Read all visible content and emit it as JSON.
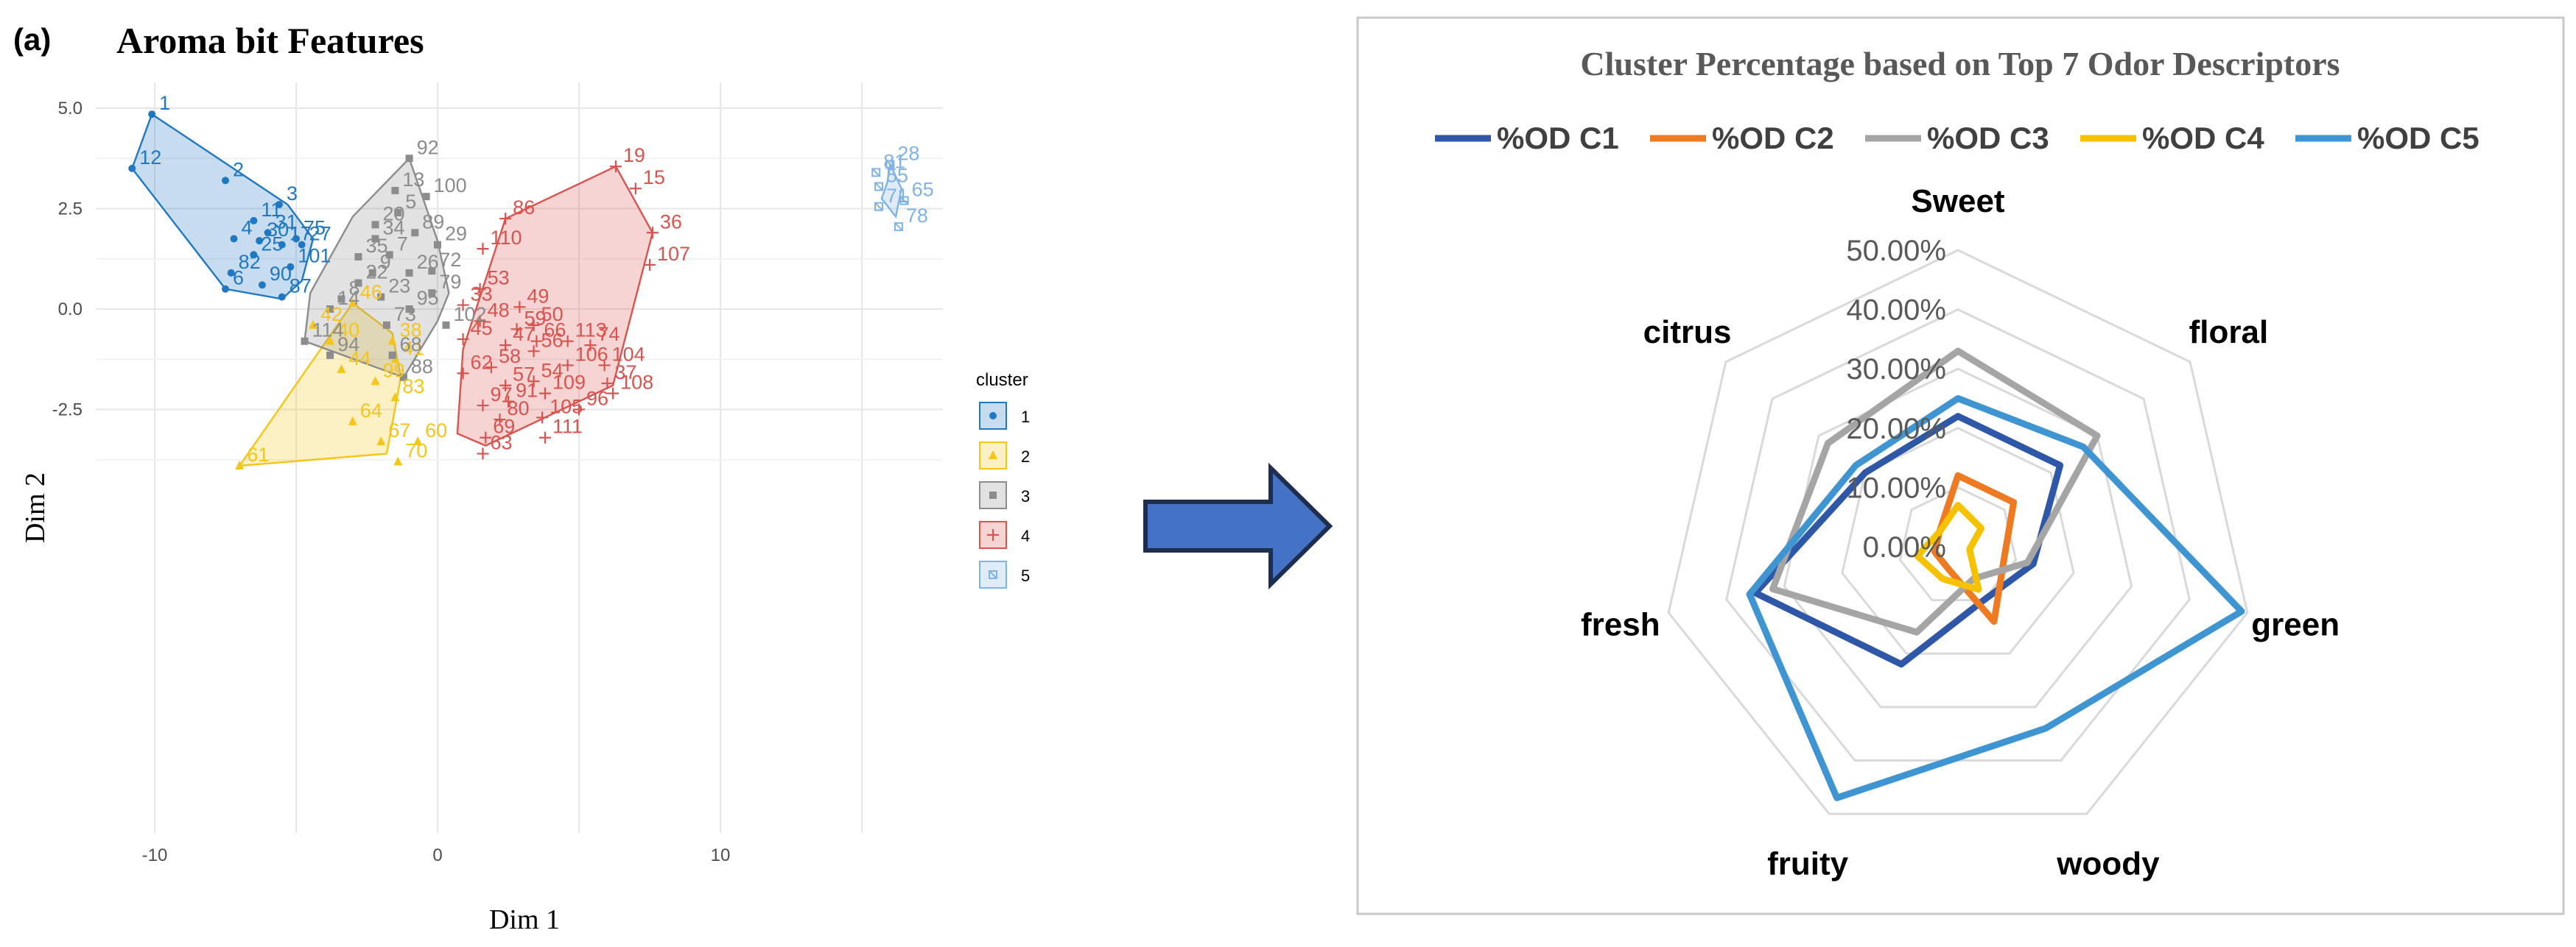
{
  "panel_label": "(a)",
  "colors": {
    "cluster1": "#1f78c1",
    "cluster2": "#f5c518",
    "cluster3": "#8c8c8c",
    "cluster4": "#d9534f",
    "cluster5": "#7fb2e5",
    "od_c1": "#2f57a8",
    "od_c2": "#ee7a22",
    "od_c3": "#a5a5a5",
    "od_c4": "#f6c200",
    "od_c5": "#3e95d1",
    "arrow_fill": "#4472c4",
    "arrow_stroke": "#1f2d4e"
  },
  "chart_data": [
    {
      "type": "scatter",
      "title": "Aroma bit Features",
      "xlabel": "Dim 1",
      "ylabel": "Dim 2",
      "xlim": [
        -10.5,
        17.5
      ],
      "ylim": [
        -4.6,
        5.4
      ],
      "xticks": [
        -10,
        0,
        10
      ],
      "yticks": [
        5.0,
        2.5,
        0.0,
        -2.5
      ],
      "xtick_labels": [
        "-10",
        "0",
        "10"
      ],
      "ytick_labels": [
        "5.0",
        "2.5",
        "0.0",
        "-2.5"
      ],
      "grid": true,
      "legend_title": "cluster",
      "legend_position": "right",
      "series": [
        {
          "name": "1",
          "hull": [
            [
              -10.1,
              4.85
            ],
            [
              -5.3,
              2.6
            ],
            [
              -4.4,
              1.75
            ],
            [
              -4.8,
              0.7
            ],
            [
              -5.5,
              0.25
            ],
            [
              -7.5,
              0.5
            ],
            [
              -10.8,
              3.5
            ]
          ],
          "points": [
            {
              "x": -10.1,
              "y": 4.85,
              "label": "1"
            },
            {
              "x": -10.8,
              "y": 3.5,
              "label": "12"
            },
            {
              "x": -7.5,
              "y": 3.2,
              "label": "2"
            },
            {
              "x": -5.6,
              "y": 2.6,
              "label": "3"
            },
            {
              "x": -6.5,
              "y": 2.2,
              "label": "11"
            },
            {
              "x": -6.0,
              "y": 1.9,
              "label": "31"
            },
            {
              "x": -5.0,
              "y": 1.75,
              "label": "75"
            },
            {
              "x": -7.2,
              "y": 1.75,
              "label": "4"
            },
            {
              "x": -6.3,
              "y": 1.7,
              "label": "30"
            },
            {
              "x": -5.5,
              "y": 1.6,
              "label": "17"
            },
            {
              "x": -4.8,
              "y": 1.6,
              "label": "27"
            },
            {
              "x": -6.5,
              "y": 1.35,
              "label": "25"
            },
            {
              "x": -5.2,
              "y": 1.05,
              "label": "101"
            },
            {
              "x": -7.3,
              "y": 0.9,
              "label": "82"
            },
            {
              "x": -6.2,
              "y": 0.6,
              "label": "90"
            },
            {
              "x": -7.5,
              "y": 0.5,
              "label": "6"
            },
            {
              "x": -5.5,
              "y": 0.3,
              "label": "87"
            }
          ]
        },
        {
          "name": "2",
          "hull": [
            [
              -3.0,
              0.15
            ],
            [
              -1.6,
              -0.6
            ],
            [
              -1.3,
              -1.7
            ],
            [
              -1.8,
              -3.6
            ],
            [
              -7.0,
              -3.9
            ]
          ],
          "points": [
            {
              "x": -3.0,
              "y": 0.15,
              "label": "46"
            },
            {
              "x": -4.4,
              "y": -0.4,
              "label": "42"
            },
            {
              "x": -3.8,
              "y": -0.8,
              "label": "40"
            },
            {
              "x": -1.6,
              "y": -0.8,
              "label": "38"
            },
            {
              "x": -1.5,
              "y": -1.25,
              "label": "41"
            },
            {
              "x": -3.4,
              "y": -1.5,
              "label": "44"
            },
            {
              "x": -2.2,
              "y": -1.8,
              "label": "99"
            },
            {
              "x": -1.5,
              "y": -2.2,
              "label": "83"
            },
            {
              "x": -3.0,
              "y": -2.8,
              "label": "64"
            },
            {
              "x": -2.0,
              "y": -3.3,
              "label": "67"
            },
            {
              "x": -0.7,
              "y": -3.3,
              "label": "60"
            },
            {
              "x": -7.0,
              "y": -3.9,
              "label": "61"
            },
            {
              "x": -1.4,
              "y": -3.8,
              "label": "70"
            }
          ]
        },
        {
          "name": "3",
          "hull": [
            [
              -1.0,
              3.75
            ],
            [
              0.0,
              1.7
            ],
            [
              0.4,
              0.4
            ],
            [
              0.0,
              -0.3
            ],
            [
              -1.2,
              -1.7
            ],
            [
              -4.7,
              -0.8
            ],
            [
              -4.5,
              0.4
            ],
            [
              -3.0,
              2.3
            ]
          ],
          "points": [
            {
              "x": -1.0,
              "y": 3.75,
              "label": "92"
            },
            {
              "x": -1.5,
              "y": 2.95,
              "label": "13"
            },
            {
              "x": -0.4,
              "y": 2.8,
              "label": "100"
            },
            {
              "x": -1.4,
              "y": 2.4,
              "label": "5"
            },
            {
              "x": -2.2,
              "y": 2.1,
              "label": "20"
            },
            {
              "x": -0.8,
              "y": 1.9,
              "label": "89"
            },
            {
              "x": -2.2,
              "y": 1.75,
              "label": "34"
            },
            {
              "x": 0.0,
              "y": 1.6,
              "label": "29"
            },
            {
              "x": -2.8,
              "y": 1.3,
              "label": "35"
            },
            {
              "x": -1.7,
              "y": 1.35,
              "label": "7"
            },
            {
              "x": -2.3,
              "y": 0.9,
              "label": "9"
            },
            {
              "x": -1.0,
              "y": 0.9,
              "label": "26"
            },
            {
              "x": -0.2,
              "y": 0.95,
              "label": "72"
            },
            {
              "x": -2.8,
              "y": 0.65,
              "label": "22"
            },
            {
              "x": -0.2,
              "y": 0.4,
              "label": "79"
            },
            {
              "x": -3.4,
              "y": 0.25,
              "label": "8"
            },
            {
              "x": -2.0,
              "y": 0.3,
              "label": "23"
            },
            {
              "x": -3.8,
              "y": 0.0,
              "label": "14"
            },
            {
              "x": -1.0,
              "y": 0.0,
              "label": "95"
            },
            {
              "x": 0.3,
              "y": -0.4,
              "label": "102"
            },
            {
              "x": -1.8,
              "y": -0.4,
              "label": "73"
            },
            {
              "x": -4.7,
              "y": -0.8,
              "label": "114"
            },
            {
              "x": -3.8,
              "y": -1.15,
              "label": "94"
            },
            {
              "x": -1.6,
              "y": -1.15,
              "label": "68"
            },
            {
              "x": -1.2,
              "y": -1.7,
              "label": "88"
            }
          ]
        },
        {
          "name": "4",
          "hull": [
            [
              6.3,
              3.55
            ],
            [
              7.6,
              1.9
            ],
            [
              6.2,
              -1.9
            ],
            [
              1.7,
              -3.4
            ],
            [
              0.7,
              -3.1
            ],
            [
              0.9,
              -1.0
            ],
            [
              2.4,
              2.25
            ]
          ],
          "points": [
            {
              "x": 6.3,
              "y": 3.55,
              "label": "19"
            },
            {
              "x": 7.0,
              "y": 3.0,
              "label": "15"
            },
            {
              "x": 2.4,
              "y": 2.25,
              "label": "86"
            },
            {
              "x": 7.6,
              "y": 1.9,
              "label": "36"
            },
            {
              "x": 1.6,
              "y": 1.5,
              "label": "110"
            },
            {
              "x": 7.5,
              "y": 1.1,
              "label": "107"
            },
            {
              "x": 1.5,
              "y": 0.5,
              "label": "53"
            },
            {
              "x": 2.9,
              "y": 0.05,
              "label": "49"
            },
            {
              "x": 0.9,
              "y": 0.1,
              "label": "33"
            },
            {
              "x": 1.5,
              "y": -0.3,
              "label": "48"
            },
            {
              "x": 3.4,
              "y": -0.4,
              "label": "50"
            },
            {
              "x": 2.8,
              "y": -0.5,
              "label": "59"
            },
            {
              "x": 3.5,
              "y": -0.8,
              "label": "66"
            },
            {
              "x": 0.9,
              "y": -0.75,
              "label": "45"
            },
            {
              "x": 4.6,
              "y": -0.8,
              "label": "113"
            },
            {
              "x": 5.4,
              "y": -0.9,
              "label": "74"
            },
            {
              "x": 2.4,
              "y": -0.9,
              "label": "47"
            },
            {
              "x": 3.4,
              "y": -1.05,
              "label": "56"
            },
            {
              "x": 1.9,
              "y": -1.45,
              "label": "58"
            },
            {
              "x": 4.6,
              "y": -1.4,
              "label": "106"
            },
            {
              "x": 5.9,
              "y": -1.4,
              "label": "104"
            },
            {
              "x": 0.9,
              "y": -1.6,
              "label": "62"
            },
            {
              "x": 2.4,
              "y": -1.9,
              "label": "57"
            },
            {
              "x": 3.4,
              "y": -1.8,
              "label": "54"
            },
            {
              "x": 6.0,
              "y": -1.85,
              "label": "37"
            },
            {
              "x": 3.8,
              "y": -2.1,
              "label": "109"
            },
            {
              "x": 6.2,
              "y": -2.1,
              "label": "108"
            },
            {
              "x": 2.5,
              "y": -2.3,
              "label": "91"
            },
            {
              "x": 1.6,
              "y": -2.4,
              "label": "97"
            },
            {
              "x": 5.0,
              "y": -2.5,
              "label": "96"
            },
            {
              "x": 3.7,
              "y": -2.7,
              "label": "105"
            },
            {
              "x": 2.2,
              "y": -2.75,
              "label": "80"
            },
            {
              "x": 1.7,
              "y": -3.2,
              "label": "69"
            },
            {
              "x": 3.8,
              "y": -3.2,
              "label": "111"
            },
            {
              "x": 1.6,
              "y": -3.6,
              "label": "63"
            }
          ]
        },
        {
          "name": "5",
          "hull": [
            [
              16.0,
              3.6
            ],
            [
              16.4,
              3.0
            ],
            [
              16.2,
              2.3
            ],
            [
              15.7,
              2.75
            ],
            [
              15.9,
              3.15
            ]
          ],
          "points": [
            {
              "x": 16.0,
              "y": 3.6,
              "label": "28"
            },
            {
              "x": 15.5,
              "y": 3.4,
              "label": "81"
            },
            {
              "x": 15.6,
              "y": 3.05,
              "label": "55"
            },
            {
              "x": 16.5,
              "y": 2.7,
              "label": "65"
            },
            {
              "x": 15.6,
              "y": 2.55,
              "label": "71"
            },
            {
              "x": 16.3,
              "y": 2.05,
              "label": "78"
            }
          ]
        }
      ]
    },
    {
      "type": "radar",
      "title": "Cluster Percentage based on Top 7 Odor Descriptors",
      "axes": [
        "Sweet",
        "floral",
        "green",
        "woody",
        "fruity",
        "fresh",
        "citrus"
      ],
      "rlim": [
        0,
        50
      ],
      "rticks": [
        0,
        10,
        20,
        30,
        40,
        50
      ],
      "rtick_labels": [
        "0.00%",
        "10.00%",
        "20.00%",
        "30.00%",
        "40.00%",
        "50.00%"
      ],
      "grid": true,
      "legend_position": "top",
      "series": [
        {
          "name": "%OD C1",
          "values": [
            22,
            22,
            13,
            10,
            22,
            35,
            20
          ]
        },
        {
          "name": "%OD C2",
          "values": [
            12,
            12,
            8,
            14,
            4,
            4,
            4
          ]
        },
        {
          "name": "%OD C3",
          "values": [
            33,
            30,
            12,
            6,
            16,
            32,
            28
          ]
        },
        {
          "name": "%OD C4",
          "values": [
            7,
            5,
            2,
            8,
            6,
            7,
            4
          ]
        },
        {
          "name": "%OD C5",
          "values": [
            25,
            27,
            49,
            34,
            47,
            36,
            22
          ]
        }
      ]
    }
  ]
}
